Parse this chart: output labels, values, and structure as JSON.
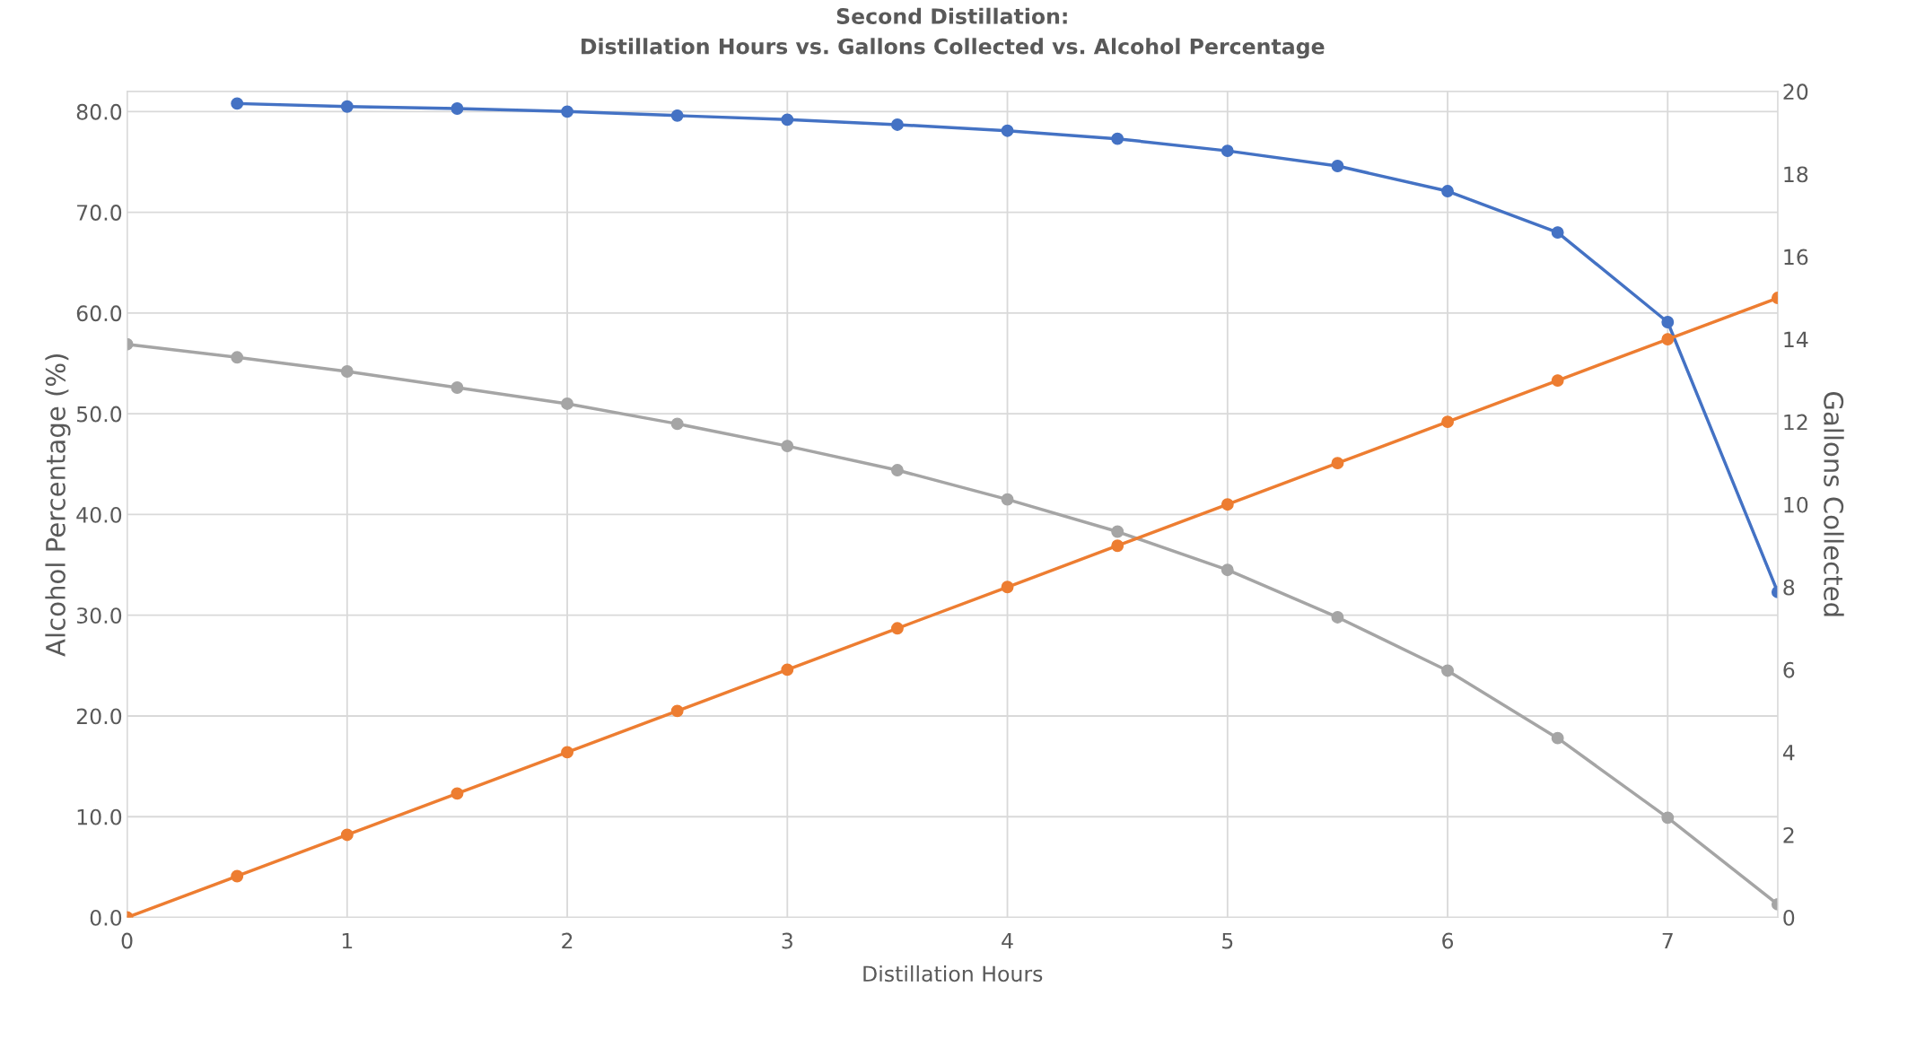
{
  "chart_data": {
    "type": "line",
    "title": "Second Distillation:\nDistillation Hours vs. Gallons Collected vs. Alcohol Percentage",
    "xlabel": "Distillation Hours",
    "ylabel": "Alcohol Percentage (%)",
    "y2label": "Gallons Collected",
    "xlim": [
      0,
      7.5
    ],
    "xticks": [
      0,
      1,
      2,
      3,
      4,
      5,
      6,
      7
    ],
    "ylim": [
      0,
      82
    ],
    "yticks": [
      {
        "value": 0,
        "label": "0.0"
      },
      {
        "value": 10,
        "label": "10.0"
      },
      {
        "value": 20,
        "label": "20.0"
      },
      {
        "value": 30,
        "label": "30.0"
      },
      {
        "value": 40,
        "label": "40.0"
      },
      {
        "value": 50,
        "label": "50.0"
      },
      {
        "value": 60,
        "label": "60.0"
      },
      {
        "value": 70,
        "label": "70.0"
      },
      {
        "value": 80,
        "label": "80.0"
      }
    ],
    "y2lim": [
      0,
      20
    ],
    "y2ticks": [
      0,
      2,
      4,
      6,
      8,
      10,
      12,
      14,
      16,
      18,
      20
    ],
    "grid": true,
    "marker": "circle",
    "line_style": "solid",
    "legend": false,
    "series": [
      {
        "color": "#4472c4",
        "x": [
          0.5,
          1,
          1.5,
          2,
          2.5,
          3,
          3.5,
          4,
          4.5,
          5,
          5.5,
          6,
          6.5,
          7,
          7.5
        ],
        "values": [
          80.8,
          80.5,
          80.3,
          80.0,
          79.6,
          79.2,
          78.7,
          78.1,
          77.3,
          76.1,
          74.6,
          72.1,
          68.0,
          59.1,
          32.3
        ]
      },
      {
        "color": "#ed7d31",
        "axis": "y2",
        "x": [
          0,
          0.5,
          1,
          1.5,
          2,
          2.5,
          3,
          3.5,
          4,
          4.5,
          5,
          5.5,
          6,
          6.5,
          7,
          7.5
        ],
        "values": [
          0,
          1,
          2,
          3,
          4,
          5,
          6,
          7,
          8,
          9,
          10,
          11,
          12,
          13,
          14,
          15
        ]
      },
      {
        "color": "#a5a5a5",
        "x": [
          0,
          0.5,
          1,
          1.5,
          2,
          2.5,
          3,
          3.5,
          4,
          4.5,
          5,
          5.5,
          6,
          6.5,
          7,
          7.5
        ],
        "values": [
          56.9,
          55.6,
          54.2,
          52.6,
          51.0,
          49.0,
          46.8,
          44.4,
          41.5,
          38.3,
          34.5,
          29.8,
          24.5,
          17.8,
          9.9,
          1.3
        ]
      }
    ]
  }
}
